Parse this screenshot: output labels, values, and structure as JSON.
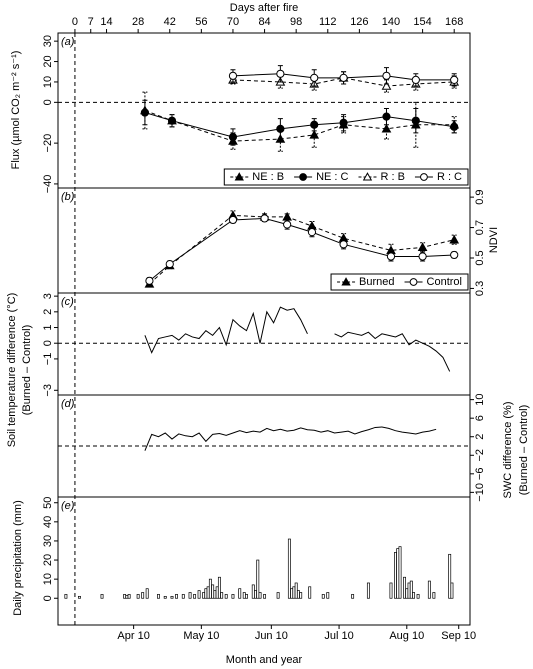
{
  "chart_data": [
    {
      "type": "line",
      "panel_label": "(a)",
      "xlabel": "Days after fire",
      "xaxis_side": "top",
      "xlim": [
        -7.5,
        175
      ],
      "xticks": [
        0,
        7,
        14,
        28,
        42,
        56,
        70,
        84,
        98,
        112,
        126,
        140,
        154,
        168
      ],
      "ylabel": [
        "Flux (µmol CO₂ m⁻² s⁻¹)"
      ],
      "yaxis_side": "left",
      "ylim": [
        -42,
        34
      ],
      "yticks": [
        30,
        20,
        10,
        0,
        {
          "value": -20,
          "label": "−20"
        },
        {
          "value": -40,
          "label": "−40"
        }
      ],
      "reference_line": 0,
      "legend": "lower right",
      "series": [
        {
          "name": "NE : B",
          "color": "#000000",
          "marker": "triangle",
          "filled": true,
          "dash": true,
          "x": [
            31,
            43,
            70,
            91,
            106,
            119,
            138,
            151,
            168
          ],
          "values": [
            -4,
            -9,
            -19,
            -18,
            -16,
            -11,
            -13,
            -11,
            -11
          ],
          "errors": [
            9,
            3,
            4,
            6,
            6,
            4,
            5,
            11,
            4
          ]
        },
        {
          "name": "NE : C",
          "color": "#000000",
          "marker": "circle",
          "filled": true,
          "dash": false,
          "x": [
            31,
            43,
            70,
            91,
            106,
            119,
            138,
            151,
            168
          ],
          "values": [
            -5,
            -9,
            -17,
            -13,
            -11,
            -10,
            -7,
            -9,
            -12
          ],
          "errors": [
            6,
            3,
            4,
            5,
            3,
            4,
            4,
            6,
            3
          ]
        },
        {
          "name": "R : B",
          "color": "#000000",
          "marker": "triangle",
          "filled": false,
          "dash": true,
          "x": [
            70,
            91,
            106,
            119,
            138,
            151,
            168
          ],
          "values": [
            11,
            10,
            9,
            12,
            8,
            9,
            10
          ],
          "errors": [
            2,
            3,
            3,
            3,
            3,
            3,
            3
          ]
        },
        {
          "name": "R : C",
          "color": "#000000",
          "marker": "circle",
          "filled": false,
          "dash": false,
          "x": [
            70,
            91,
            106,
            119,
            138,
            151,
            168
          ],
          "values": [
            13,
            14,
            12,
            12,
            13,
            11,
            11
          ],
          "errors": [
            3,
            4,
            4,
            3,
            4,
            3,
            3
          ]
        }
      ]
    },
    {
      "type": "line",
      "panel_label": "(b)",
      "xlim": [
        -7.5,
        175
      ],
      "ylabel": [
        "NDVI"
      ],
      "yaxis_side": "right",
      "ylim": [
        0.27,
        0.96
      ],
      "yticks": [
        0.3,
        0.5,
        0.7,
        0.9
      ],
      "legend": "lower right",
      "series": [
        {
          "name": "Burned",
          "color": "#000000",
          "marker": "triangle",
          "filled": true,
          "dash": true,
          "x": [
            33,
            42,
            70,
            84,
            94,
            105,
            119,
            140,
            154,
            168
          ],
          "values": [
            0.33,
            0.45,
            0.78,
            0.77,
            0.77,
            0.71,
            0.63,
            0.55,
            0.57,
            0.62
          ],
          "errors": [
            0.02,
            0.02,
            0.03,
            0.02,
            0.02,
            0.03,
            0.03,
            0.04,
            0.03,
            0.03
          ]
        },
        {
          "name": "Control",
          "color": "#000000",
          "marker": "circle",
          "filled": false,
          "dash": false,
          "x": [
            33,
            42,
            70,
            84,
            94,
            105,
            119,
            140,
            154,
            168
          ],
          "values": [
            0.35,
            0.46,
            0.75,
            0.76,
            0.72,
            0.67,
            0.59,
            0.51,
            0.51,
            0.52
          ],
          "errors": [
            0.02,
            0.02,
            0.02,
            0.02,
            0.03,
            0.03,
            0.03,
            0.03,
            0.03,
            0.02
          ]
        }
      ]
    },
    {
      "type": "line",
      "panel_label": "(c)",
      "xlim": [
        -7.5,
        175
      ],
      "ylabel": [
        "Soil temperature difference (°C)",
        "(Burned – Control)"
      ],
      "yaxis_side": "left",
      "ylim": [
        -3.3,
        3.2
      ],
      "yticks": [
        3,
        2,
        1,
        0,
        {
          "value": -1,
          "label": "−1"
        },
        {
          "value": -3,
          "label": "−3"
        }
      ],
      "reference_line": 0,
      "color": "#000000",
      "x": [
        31,
        34,
        37,
        40,
        43,
        46,
        49,
        52,
        55,
        58,
        61,
        64,
        67,
        70,
        73,
        76,
        79,
        82,
        85,
        88,
        91,
        94,
        97,
        100,
        103,
        106,
        109,
        112,
        115,
        118,
        121,
        124,
        127,
        130,
        133,
        136,
        139,
        142,
        145,
        148,
        151,
        154,
        157,
        160,
        163,
        166
      ],
      "values": [
        0.5,
        -0.6,
        0.3,
        0.4,
        0.5,
        0.2,
        0.6,
        0.4,
        0.3,
        0.8,
        0.5,
        1.0,
        -0.1,
        1.5,
        1.1,
        0.8,
        1.9,
        0.0,
        2.0,
        1.3,
        2.3,
        2.1,
        2.2,
        1.5,
        0.6,
        null,
        null,
        null,
        0.6,
        0.4,
        0.7,
        0.6,
        0.5,
        0.7,
        0.3,
        0.6,
        0.5,
        0.4,
        0.6,
        -0.1,
        0.2,
        0.0,
        -0.2,
        -0.5,
        -0.9,
        -1.8
      ]
    },
    {
      "type": "line",
      "panel_label": "(d)",
      "xlim": [
        -7.5,
        175
      ],
      "ylabel": [
        "SWC difference (%)",
        "(Burned – Control)"
      ],
      "yaxis_side": "right",
      "ylim": [
        -11,
        11
      ],
      "yticks": [
        10,
        6,
        2,
        {
          "value": -2,
          "label": "−2"
        },
        {
          "value": -6,
          "label": "−6"
        },
        {
          "value": -10,
          "label": "−10"
        }
      ],
      "reference_line": 0,
      "color": "#000000",
      "x": [
        31,
        34,
        37,
        40,
        43,
        46,
        49,
        52,
        55,
        58,
        61,
        64,
        67,
        70,
        73,
        76,
        79,
        82,
        85,
        88,
        91,
        94,
        97,
        100,
        103,
        106,
        109,
        112,
        115,
        118,
        121,
        124,
        127,
        130,
        133,
        136,
        139,
        142,
        145,
        148,
        151,
        154,
        157,
        160
      ],
      "values": [
        -1,
        2.5,
        2.0,
        2.8,
        1.5,
        2.6,
        2.2,
        2.0,
        2.8,
        1.0,
        2.5,
        2.7,
        2.3,
        2.8,
        3.3,
        2.9,
        3.2,
        3.0,
        3.8,
        3.3,
        3.6,
        3.2,
        3.4,
        3.9,
        3.5,
        3.4,
        3.0,
        3.3,
        2.8,
        3.0,
        3.2,
        2.6,
        3.1,
        3.5,
        4.0,
        4.1,
        3.8,
        3.3,
        3.0,
        2.8,
        2.6,
        3.0,
        3.2,
        3.6
      ]
    },
    {
      "type": "bar",
      "panel_label": "(e)",
      "xlabel": "Month and year",
      "xaxis_side": "bottom",
      "xlim": [
        -7.5,
        175
      ],
      "xticks": [
        {
          "value": 26,
          "label": "Apr 10"
        },
        {
          "value": 56,
          "label": "May 10"
        },
        {
          "value": 87,
          "label": "Jun 10"
        },
        {
          "value": 117,
          "label": "Jul 10"
        },
        {
          "value": 147,
          "label": "Aug 10"
        },
        {
          "value": 170,
          "label": "Sep 10"
        }
      ],
      "ylabel": [
        "Daily precipitation (mm)"
      ],
      "yaxis_side": "left",
      "ylim": [
        -14,
        53
      ],
      "yticks": [
        0,
        10,
        20,
        30,
        40,
        50
      ],
      "color": "#ffffff",
      "x": [
        -4,
        2,
        12,
        22,
        23,
        24,
        28,
        30,
        32,
        37,
        40,
        43,
        45,
        48,
        51,
        53,
        55,
        57,
        58,
        59,
        60,
        61,
        62,
        63,
        64,
        65,
        67,
        70,
        73,
        75,
        76,
        79,
        80,
        81,
        82,
        84,
        90,
        95,
        96,
        97,
        98,
        99,
        100,
        104,
        110,
        112,
        123,
        130,
        140,
        142,
        143,
        144,
        146,
        147,
        148,
        149,
        150,
        152,
        157,
        159,
        166,
        167
      ],
      "values": [
        2,
        1,
        2,
        2,
        1.5,
        2,
        2,
        3,
        5,
        2,
        1,
        1,
        2,
        2,
        3,
        2,
        4,
        3,
        5,
        6,
        10,
        7,
        4,
        6,
        11,
        3,
        2,
        2,
        5,
        3,
        2,
        7,
        4,
        20,
        3,
        2,
        3,
        31,
        5,
        6,
        8,
        4,
        3,
        6,
        2,
        3,
        2,
        8,
        8,
        24,
        26,
        27,
        11,
        5,
        8,
        9,
        3,
        2,
        9,
        3,
        23,
        8
      ]
    }
  ]
}
